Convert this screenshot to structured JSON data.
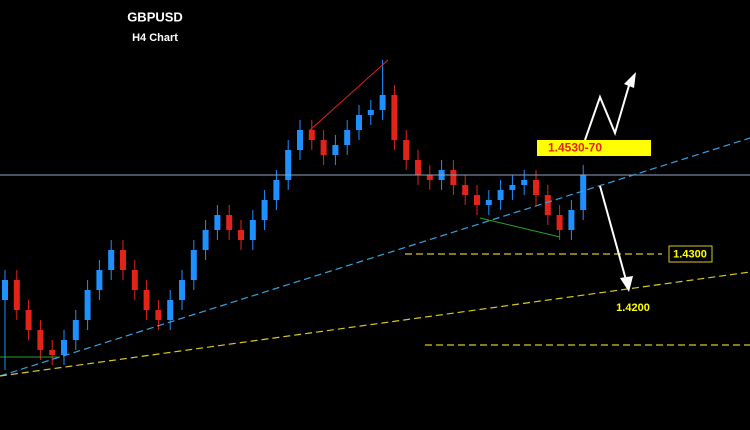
{
  "chart_data": {
    "type": "candlestick",
    "title": "GBPUSD",
    "subtitle": "H4 Chart",
    "ylim": [
      1.404,
      1.49
    ],
    "up_color": "#1e90ff",
    "down_color": "#e2231a",
    "open": [
      1.43,
      1.434,
      1.428,
      1.424,
      1.42,
      1.419,
      1.422,
      1.426,
      1.432,
      1.436,
      1.44,
      1.436,
      1.432,
      1.428,
      1.426,
      1.43,
      1.434,
      1.44,
      1.444,
      1.447,
      1.444,
      1.442,
      1.446,
      1.45,
      1.454,
      1.46,
      1.464,
      1.462,
      1.459,
      1.461,
      1.464,
      1.467,
      1.468,
      1.471,
      1.462,
      1.458,
      1.455,
      1.454,
      1.456,
      1.453,
      1.451,
      1.449,
      1.45,
      1.452,
      1.453,
      1.454,
      1.451,
      1.447,
      1.444,
      1.448
    ],
    "high": [
      1.436,
      1.436,
      1.43,
      1.426,
      1.422,
      1.424,
      1.428,
      1.434,
      1.438,
      1.442,
      1.442,
      1.438,
      1.434,
      1.43,
      1.432,
      1.436,
      1.442,
      1.446,
      1.449,
      1.449,
      1.446,
      1.448,
      1.452,
      1.456,
      1.462,
      1.466,
      1.466,
      1.464,
      1.463,
      1.466,
      1.469,
      1.47,
      1.478,
      1.473,
      1.464,
      1.46,
      1.457,
      1.458,
      1.458,
      1.455,
      1.453,
      1.452,
      1.454,
      1.455,
      1.456,
      1.456,
      1.453,
      1.449,
      1.45,
      1.457
    ],
    "low": [
      1.416,
      1.426,
      1.422,
      1.418,
      1.417,
      1.417,
      1.42,
      1.424,
      1.43,
      1.434,
      1.434,
      1.43,
      1.426,
      1.424,
      1.424,
      1.428,
      1.432,
      1.438,
      1.442,
      1.442,
      1.44,
      1.44,
      1.444,
      1.448,
      1.452,
      1.458,
      1.46,
      1.457,
      1.457,
      1.459,
      1.462,
      1.465,
      1.466,
      1.46,
      1.456,
      1.453,
      1.452,
      1.452,
      1.451,
      1.449,
      1.447,
      1.447,
      1.448,
      1.45,
      1.451,
      1.449,
      1.445,
      1.442,
      1.442,
      1.446
    ],
    "close": [
      1.434,
      1.428,
      1.424,
      1.42,
      1.419,
      1.422,
      1.426,
      1.432,
      1.436,
      1.44,
      1.436,
      1.432,
      1.428,
      1.426,
      1.43,
      1.434,
      1.44,
      1.444,
      1.447,
      1.444,
      1.442,
      1.446,
      1.45,
      1.454,
      1.46,
      1.464,
      1.462,
      1.459,
      1.461,
      1.464,
      1.467,
      1.468,
      1.471,
      1.462,
      1.458,
      1.455,
      1.454,
      1.456,
      1.453,
      1.451,
      1.449,
      1.45,
      1.452,
      1.453,
      1.454,
      1.451,
      1.447,
      1.444,
      1.448,
      1.455
    ],
    "annotations": {
      "target": "1.4530-70",
      "support1": "1.4300",
      "support2": "1.4200"
    }
  }
}
